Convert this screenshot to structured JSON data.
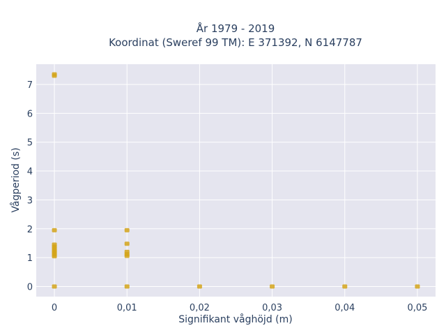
{
  "chart_data": {
    "type": "scatter",
    "title": "År 1979 - 2019",
    "subtitle": "Koordinat (Sweref 99 TM): E 371392, N 6147787",
    "xlabel": "Signifikant våghöjd (m)",
    "ylabel": "Vågperiod (s)",
    "xlim": [
      -0.0025,
      0.0525
    ],
    "ylim": [
      -0.35,
      7.7
    ],
    "x_ticks": [
      0,
      0.01,
      0.02,
      0.03,
      0.04,
      0.05
    ],
    "x_tick_labels": [
      "0",
      "0,01",
      "0,02",
      "0,03",
      "0,04",
      "0,05"
    ],
    "y_ticks": [
      0,
      1,
      2,
      3,
      4,
      5,
      6,
      7
    ],
    "y_tick_labels": [
      "0",
      "1",
      "2",
      "3",
      "4",
      "5",
      "6",
      "7"
    ],
    "grid": true,
    "legend": "none",
    "colors": {
      "marker": "#d4a51a",
      "plot_background": "#e5e5ef",
      "grid": "#ffffff"
    },
    "points": [
      {
        "x": 0,
        "y": 7.35
      },
      {
        "x": 0,
        "y": 7.3
      },
      {
        "x": 0,
        "y": 1.95
      },
      {
        "x": 0,
        "y": 1.45
      },
      {
        "x": 0,
        "y": 1.38
      },
      {
        "x": 0,
        "y": 1.32
      },
      {
        "x": 0,
        "y": 1.25
      },
      {
        "x": 0,
        "y": 1.2
      },
      {
        "x": 0,
        "y": 1.15
      },
      {
        "x": 0,
        "y": 1.1
      },
      {
        "x": 0,
        "y": 1.05
      },
      {
        "x": 0,
        "y": 0
      },
      {
        "x": 0.01,
        "y": 1.95
      },
      {
        "x": 0.01,
        "y": 1.48
      },
      {
        "x": 0.01,
        "y": 1.2
      },
      {
        "x": 0.01,
        "y": 1.12
      },
      {
        "x": 0.01,
        "y": 1.06
      },
      {
        "x": 0.01,
        "y": 0
      },
      {
        "x": 0.02,
        "y": 0
      },
      {
        "x": 0.03,
        "y": 0
      },
      {
        "x": 0.04,
        "y": 0
      },
      {
        "x": 0.05,
        "y": 0
      }
    ]
  }
}
